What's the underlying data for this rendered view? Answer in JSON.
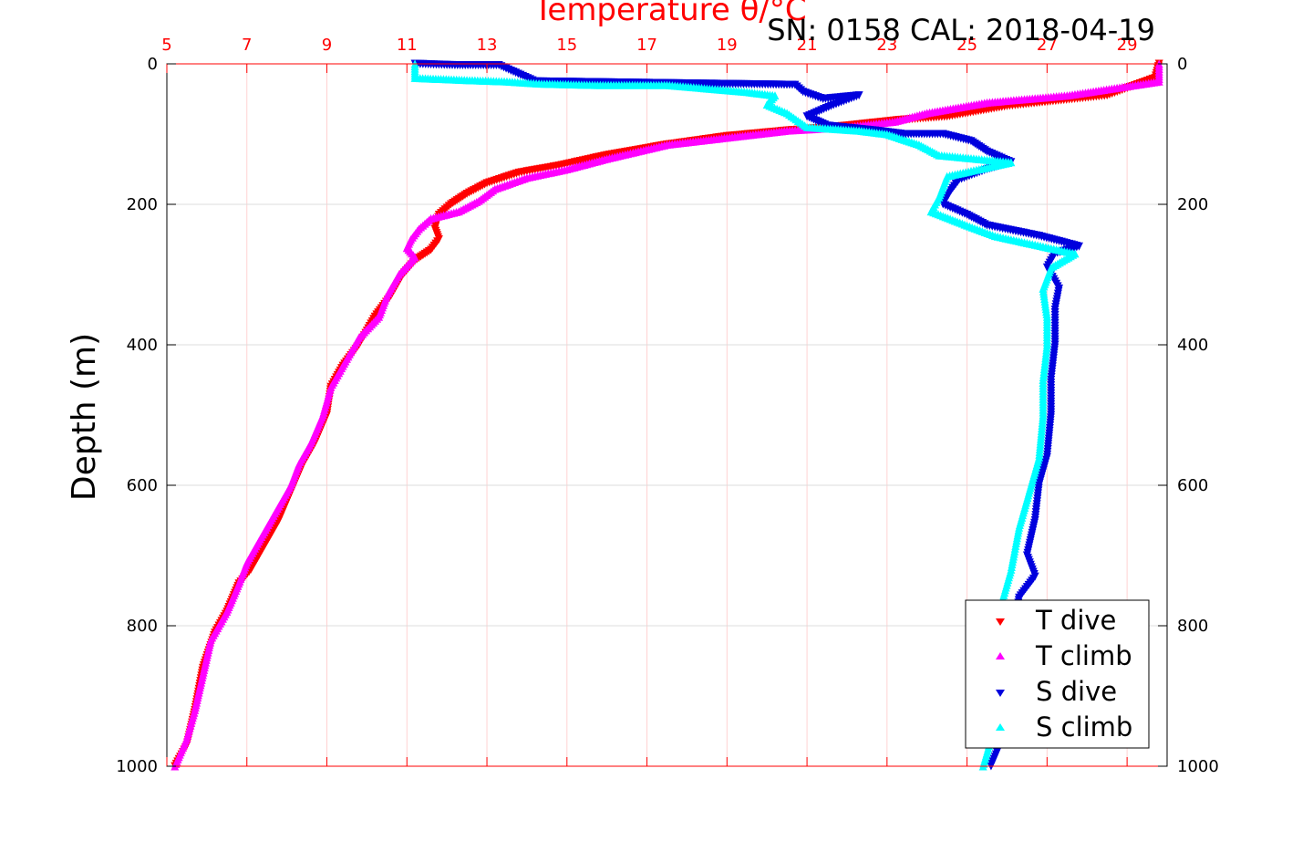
{
  "chart_data": {
    "type": "scatter",
    "title": "Temperature θ/°C",
    "annotation": "SN: 0158  CAL: 2018-04-19",
    "ylabel": "Depth (m)",
    "x_top": {
      "label": "Temperature θ/°C",
      "range": [
        5,
        30
      ],
      "ticks": [
        5,
        7,
        9,
        11,
        13,
        15,
        17,
        19,
        21,
        23,
        25,
        27,
        29
      ],
      "color": "#ff0000"
    },
    "y": {
      "range": [
        0,
        1000
      ],
      "reversed": true,
      "ticks": [
        0,
        200,
        400,
        600,
        800,
        1000
      ]
    },
    "grid": true,
    "legend": {
      "position": "bottom-right",
      "entries": [
        "T dive",
        "T climb",
        "S dive",
        "S climb"
      ]
    },
    "series": [
      {
        "name": "T dive",
        "marker": "triangle-down",
        "color": "#ff0000",
        "points": [
          [
            29.8,
            0
          ],
          [
            29.7,
            20
          ],
          [
            28.5,
            45
          ],
          [
            26,
            60
          ],
          [
            24.5,
            75
          ],
          [
            23.3,
            80
          ],
          [
            22,
            88
          ],
          [
            20.5,
            95
          ],
          [
            19,
            103
          ],
          [
            17.5,
            115
          ],
          [
            16,
            130
          ],
          [
            14.8,
            145
          ],
          [
            13.8,
            155
          ],
          [
            13,
            170
          ],
          [
            12.5,
            185
          ],
          [
            12.1,
            200
          ],
          [
            11.8,
            215
          ],
          [
            11.7,
            235
          ],
          [
            11.8,
            250
          ],
          [
            11.6,
            265
          ],
          [
            11.2,
            280
          ],
          [
            10.9,
            300
          ],
          [
            10.6,
            330
          ],
          [
            10.2,
            360
          ],
          [
            9.8,
            400
          ],
          [
            9.4,
            430
          ],
          [
            9.1,
            460
          ],
          [
            9,
            500
          ],
          [
            8.7,
            540
          ],
          [
            8.4,
            570
          ],
          [
            8.1,
            610
          ],
          [
            7.8,
            650
          ],
          [
            7.4,
            690
          ],
          [
            7.1,
            720
          ],
          [
            6.8,
            740
          ],
          [
            6.5,
            780
          ],
          [
            6.2,
            810
          ],
          [
            5.9,
            860
          ],
          [
            5.7,
            920
          ],
          [
            5.5,
            970
          ],
          [
            5.2,
            1000
          ]
        ]
      },
      {
        "name": "T climb",
        "marker": "triangle-up",
        "color": "#ff00ff",
        "points": [
          [
            29.8,
            0
          ],
          [
            29.8,
            25
          ],
          [
            27.5,
            45
          ],
          [
            25.5,
            55
          ],
          [
            24,
            70
          ],
          [
            23.2,
            82
          ],
          [
            22,
            90
          ],
          [
            20.5,
            95
          ],
          [
            19,
            105
          ],
          [
            17.5,
            115
          ],
          [
            16,
            135
          ],
          [
            15,
            150
          ],
          [
            14,
            162
          ],
          [
            13.2,
            178
          ],
          [
            12.8,
            195
          ],
          [
            12.3,
            210
          ],
          [
            11.6,
            220
          ],
          [
            11.3,
            235
          ],
          [
            11.1,
            250
          ],
          [
            11,
            262
          ],
          [
            11.2,
            275
          ],
          [
            10.8,
            300
          ],
          [
            10.5,
            330
          ],
          [
            10.3,
            360
          ],
          [
            9.8,
            390
          ],
          [
            9.4,
            430
          ],
          [
            9.1,
            460
          ],
          [
            8.9,
            500
          ],
          [
            8.6,
            540
          ],
          [
            8.3,
            570
          ],
          [
            8.1,
            600
          ],
          [
            7.7,
            640
          ],
          [
            7.3,
            680
          ],
          [
            7,
            710
          ],
          [
            6.8,
            740
          ],
          [
            6.5,
            780
          ],
          [
            6.1,
            820
          ],
          [
            5.9,
            870
          ],
          [
            5.7,
            920
          ],
          [
            5.5,
            960
          ],
          [
            5.2,
            1000
          ]
        ]
      },
      {
        "name": "S dive",
        "marker": "triangle-down",
        "color": "#0000dd",
        "points": [
          [
            11.2,
            0
          ],
          [
            12.2,
            2
          ],
          [
            13.3,
            2
          ],
          [
            14.2,
            25
          ],
          [
            20.7,
            30
          ],
          [
            20.9,
            40
          ],
          [
            21.4,
            50
          ],
          [
            22.3,
            45
          ],
          [
            21.6,
            60
          ],
          [
            21,
            75
          ],
          [
            21.5,
            88
          ],
          [
            22.7,
            95
          ],
          [
            23.4,
            100
          ],
          [
            24.4,
            100
          ],
          [
            25.1,
            110
          ],
          [
            25.5,
            125
          ],
          [
            26.1,
            140
          ],
          [
            25.5,
            150
          ],
          [
            24.8,
            165
          ],
          [
            24.6,
            180
          ],
          [
            24.4,
            200
          ],
          [
            25,
            215
          ],
          [
            25.5,
            230
          ],
          [
            26.8,
            245
          ],
          [
            27.8,
            260
          ],
          [
            27.2,
            270
          ],
          [
            27,
            290
          ],
          [
            27.3,
            320
          ],
          [
            27.2,
            350
          ],
          [
            27.2,
            400
          ],
          [
            27.1,
            450
          ],
          [
            27.1,
            500
          ],
          [
            27,
            560
          ],
          [
            26.8,
            600
          ],
          [
            26.7,
            650
          ],
          [
            26.5,
            700
          ],
          [
            26.7,
            730
          ],
          [
            26.3,
            760
          ],
          [
            26.2,
            800
          ],
          [
            26,
            860
          ],
          [
            25.9,
            920
          ],
          [
            25.9,
            960
          ],
          [
            25.6,
            1000
          ]
        ]
      },
      {
        "name": "S climb",
        "marker": "triangle-up",
        "color": "#00ffff",
        "points": [
          [
            11.2,
            0
          ],
          [
            11.2,
            20
          ],
          [
            12.5,
            23
          ],
          [
            13.5,
            25
          ],
          [
            14.3,
            28
          ],
          [
            15.7,
            30
          ],
          [
            16.7,
            30
          ],
          [
            17.5,
            30
          ],
          [
            18.5,
            35
          ],
          [
            19.5,
            40
          ],
          [
            20.2,
            45
          ],
          [
            20,
            58
          ],
          [
            20.5,
            70
          ],
          [
            21,
            90
          ],
          [
            22.3,
            95
          ],
          [
            23,
            100
          ],
          [
            23.8,
            115
          ],
          [
            24.3,
            130
          ],
          [
            26.1,
            140
          ],
          [
            24.5,
            160
          ],
          [
            24.3,
            190
          ],
          [
            24.1,
            210
          ],
          [
            25,
            230
          ],
          [
            25.7,
            245
          ],
          [
            26.5,
            255
          ],
          [
            27.7,
            270
          ],
          [
            27.1,
            290
          ],
          [
            26.9,
            320
          ],
          [
            27,
            360
          ],
          [
            27,
            400
          ],
          [
            26.9,
            450
          ],
          [
            26.9,
            500
          ],
          [
            26.8,
            560
          ],
          [
            26.6,
            600
          ],
          [
            26.3,
            660
          ],
          [
            26.1,
            720
          ],
          [
            25.9,
            760
          ],
          [
            25.9,
            800
          ],
          [
            25.8,
            860
          ],
          [
            25.7,
            920
          ],
          [
            25.6,
            960
          ],
          [
            25.4,
            1000
          ]
        ]
      }
    ]
  }
}
